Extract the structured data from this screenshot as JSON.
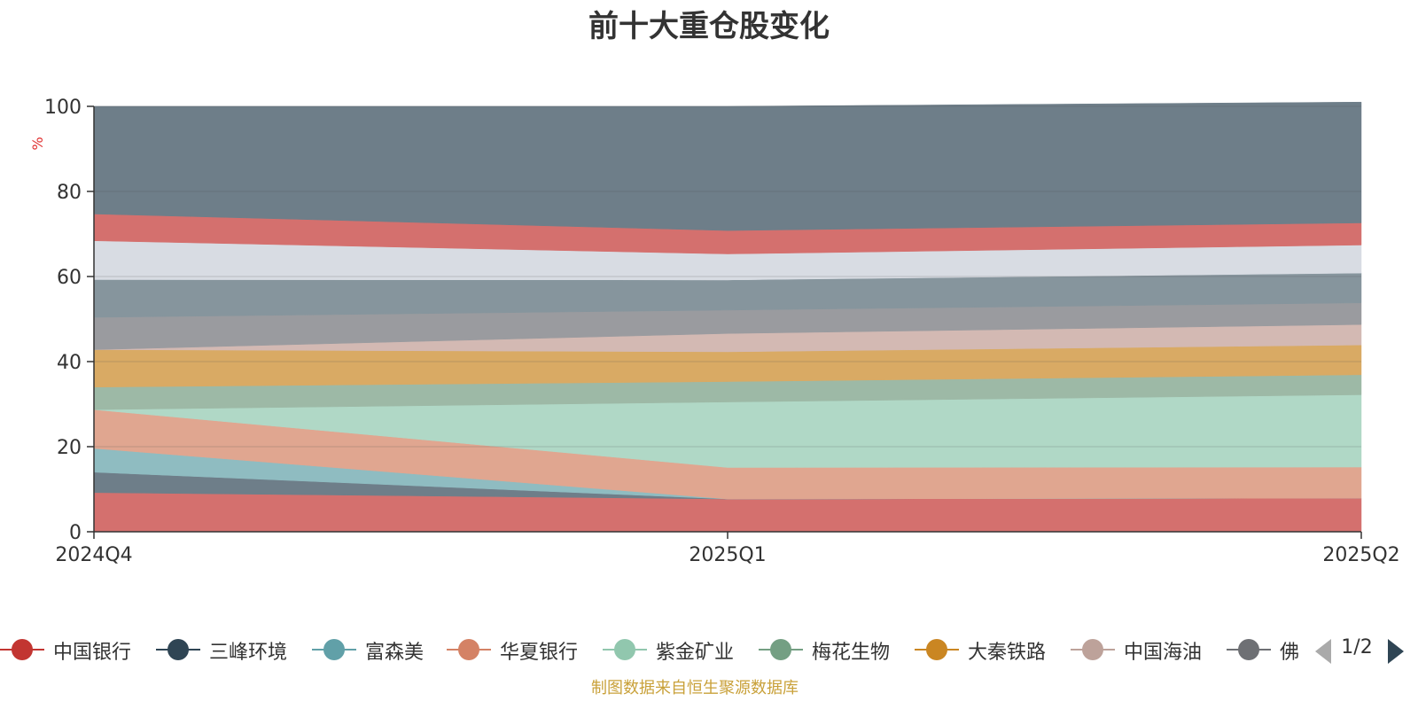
{
  "title": "前十大重仓股变化",
  "source": "制图数据来自恒生聚源数据库",
  "pager": {
    "text": "1/2"
  },
  "legend_items": [
    {
      "label": "中国银行",
      "color": "#c23531"
    },
    {
      "label": "三峰环境",
      "color": "#2f4554"
    },
    {
      "label": "富森美",
      "color": "#61a0a8"
    },
    {
      "label": "华夏银行",
      "color": "#d48265"
    },
    {
      "label": "紫金矿业",
      "color": "#91c7ae"
    },
    {
      "label": "梅花生物",
      "color": "#749f83"
    },
    {
      "label": "大秦铁路",
      "color": "#ca8622"
    },
    {
      "label": "中国海油",
      "color": "#bda29a"
    },
    {
      "label": "佛",
      "color": "#6e7074"
    }
  ],
  "chart_data": {
    "type": "area",
    "stacked": true,
    "title": "前十大重仓股变化",
    "ylabel": "%",
    "ylim": [
      0,
      100
    ],
    "yticks": [
      0,
      20,
      40,
      60,
      80,
      100
    ],
    "categories": [
      "2024Q4",
      "2025Q1",
      "2025Q2"
    ],
    "series": [
      {
        "name": "中国银行",
        "color": "#d4706e",
        "values": [
          9.2,
          7.7,
          7.9
        ]
      },
      {
        "color": "#6e7e89",
        "values": [
          4.8,
          0.0,
          0.0
        ]
      },
      {
        "color": "#8fbcc1",
        "values": [
          5.6,
          0.0,
          0.0
        ]
      },
      {
        "color": "#e0a690",
        "values": [
          9.1,
          7.4,
          7.3
        ]
      },
      {
        "color": "#b0d8c6",
        "values": [
          0.0,
          15.4,
          17.0
        ]
      },
      {
        "color": "#9db9a6",
        "values": [
          5.3,
          4.8,
          4.7
        ]
      },
      {
        "color": "#d9aa64",
        "values": [
          8.8,
          7.0,
          7.0
        ]
      },
      {
        "color": "#d3b9b3",
        "values": [
          0.0,
          4.3,
          4.8
        ]
      },
      {
        "color": "#9a9b9f",
        "values": [
          7.6,
          5.5,
          5.1
        ]
      },
      {
        "color": "#86959d",
        "values": [
          8.9,
          7.1,
          7.0
        ]
      },
      {
        "color": "#d8dce3",
        "values": [
          0.0,
          0.0,
          0.6
        ]
      },
      {
        "color": "#d8dce3",
        "values": [
          9.1,
          6.1,
          6.0
        ]
      },
      {
        "color": "#d4706e",
        "values": [
          6.3,
          5.5,
          5.2
        ]
      },
      {
        "color": "#6e7e89",
        "values": [
          25.3,
          29.2,
          28.4
        ]
      }
    ]
  }
}
